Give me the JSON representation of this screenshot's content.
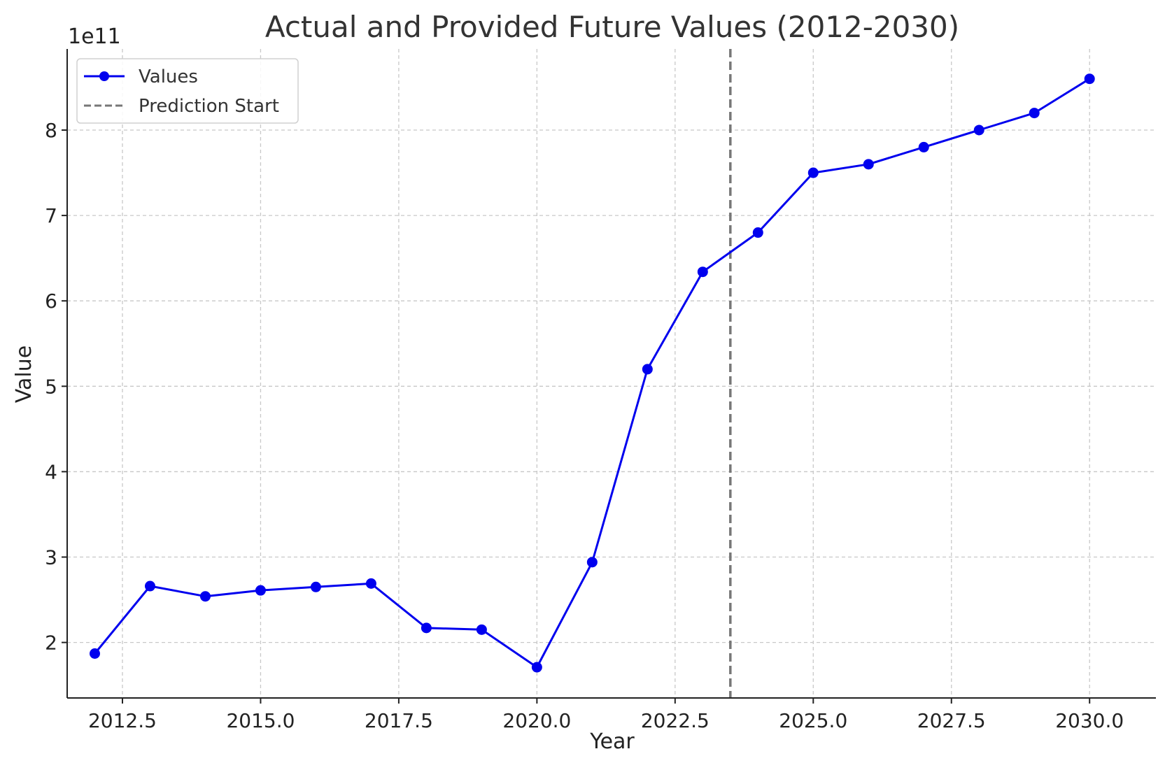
{
  "chart_data": {
    "type": "line",
    "title": "Actual and Provided Future Values (2012-2030)",
    "xlabel": "Year",
    "ylabel": "Value",
    "y_offset_label": "1e11",
    "xlim": [
      2011.5,
      2031.2
    ],
    "ylim": [
      1.35,
      8.95
    ],
    "x_ticks": [
      2012.5,
      2015.0,
      2017.5,
      2020.0,
      2022.5,
      2025.0,
      2027.5,
      2030.0
    ],
    "x_tick_labels": [
      "2012.5",
      "2015.0",
      "2017.5",
      "2020.0",
      "2022.5",
      "2025.0",
      "2027.5",
      "2030.0"
    ],
    "y_ticks": [
      2,
      3,
      4,
      5,
      6,
      7,
      8
    ],
    "y_tick_labels": [
      "2",
      "3",
      "4",
      "5",
      "6",
      "7",
      "8"
    ],
    "grid": true,
    "legend_position": "top-left",
    "series": [
      {
        "name": "Values",
        "color": "#0000ee",
        "marker": "circle",
        "x": [
          2012,
          2013,
          2014,
          2015,
          2016,
          2017,
          2018,
          2019,
          2020,
          2021,
          2022,
          2023,
          2024,
          2025,
          2026,
          2027,
          2028,
          2029,
          2030
        ],
        "y": [
          1.87,
          2.66,
          2.54,
          2.61,
          2.65,
          2.69,
          2.17,
          2.15,
          1.71,
          2.94,
          5.2,
          6.34,
          6.8,
          7.5,
          7.6,
          7.8,
          8.0,
          8.2,
          8.6
        ]
      }
    ],
    "annotations": [
      {
        "name": "Prediction Start",
        "type": "vline",
        "x": 2023.5,
        "color": "#777777",
        "style": "dashed"
      }
    ]
  }
}
